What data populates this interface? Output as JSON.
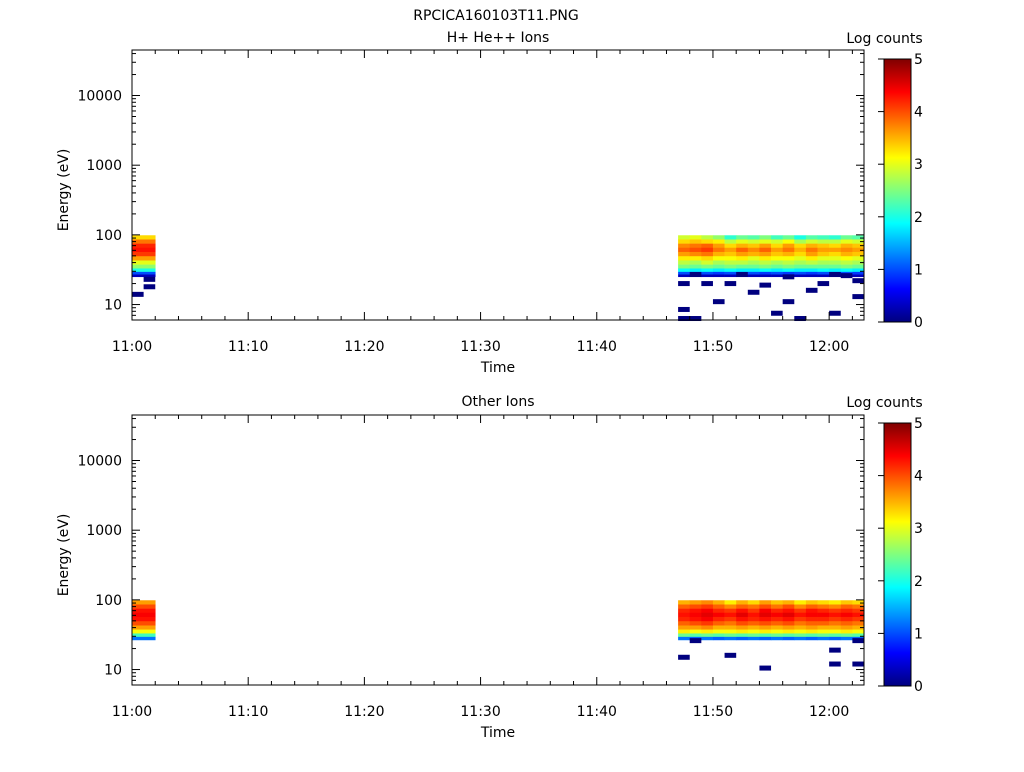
{
  "figure": {
    "title": "RPCICA160103T11.PNG"
  },
  "colorscale": [
    "#00007f",
    "#0000ff",
    "#007fff",
    "#00ffff",
    "#7fff7f",
    "#ffff00",
    "#ff7f00",
    "#ff0000",
    "#7f0000"
  ],
  "chart_data": [
    {
      "type": "heatmap",
      "title": "H+ He++ Ions",
      "xlabel": "Time",
      "ylabel": "Energy (eV)",
      "x_ticks": [
        "11:00",
        "11:10",
        "11:20",
        "11:30",
        "11:40",
        "11:50",
        "12:00"
      ],
      "xlim": [
        "11:00",
        "12:03"
      ],
      "y_scale": "log",
      "ylim": [
        6,
        45000
      ],
      "y_ticks": [
        10,
        100,
        1000,
        10000
      ],
      "y_tick_labels": [
        "10",
        "100",
        "1000",
        "10000"
      ],
      "colorbar": {
        "label": "Log counts",
        "range": [
          0,
          5
        ],
        "ticks": [
          "0",
          "1",
          "2",
          "3",
          "4",
          "5"
        ]
      },
      "blocks": [
        {
          "t_start": "11:00",
          "t_end": "11:02",
          "energies": [
            92,
            80,
            70,
            61,
            53,
            46,
            40,
            35,
            31,
            28,
            26
          ],
          "log_counts": [
            [
              3.3,
              3.8,
              4.2,
              4.3,
              4.1,
              3.6,
              3.0,
              2.6,
              2.0,
              1.0,
              0.3
            ]
          ]
        },
        {
          "t_start": "11:47",
          "t_end": "12:03",
          "energies": [
            92,
            80,
            70,
            61,
            53,
            46,
            40,
            35,
            31,
            28,
            26
          ],
          "log_counts": [
            [
              2.9,
              3.3,
              3.7,
              3.9,
              3.6,
              3.2,
              2.8,
              2.5,
              1.9,
              1.0,
              0.3
            ],
            [
              3.0,
              3.4,
              3.8,
              4.0,
              3.7,
              3.2,
              2.7,
              2.4,
              1.8,
              0.9,
              0.3
            ],
            [
              2.8,
              3.3,
              3.9,
              4.1,
              3.8,
              3.3,
              2.9,
              2.5,
              1.9,
              1.0,
              0.3
            ],
            [
              2.6,
              3.2,
              3.6,
              3.8,
              3.5,
              3.1,
              2.7,
              2.4,
              1.8,
              0.9,
              0.3
            ],
            [
              2.1,
              2.8,
              3.3,
              3.6,
              3.4,
              3.1,
              2.8,
              2.5,
              1.9,
              1.0,
              0.3
            ],
            [
              2.4,
              3.0,
              3.5,
              3.9,
              3.6,
              3.2,
              2.8,
              2.4,
              1.8,
              0.9,
              0.3
            ],
            [
              2.3,
              2.9,
              3.4,
              3.7,
              3.5,
              3.0,
              2.7,
              2.4,
              1.8,
              1.0,
              0.3
            ],
            [
              2.5,
              3.0,
              3.6,
              3.9,
              3.6,
              3.2,
              2.8,
              2.5,
              1.9,
              0.9,
              0.3
            ],
            [
              2.2,
              2.9,
              3.3,
              3.6,
              3.4,
              3.1,
              2.7,
              2.4,
              1.8,
              1.0,
              0.3
            ],
            [
              2.4,
              3.1,
              3.6,
              3.8,
              3.5,
              3.1,
              2.8,
              2.5,
              1.9,
              0.9,
              0.3
            ],
            [
              2.0,
              2.7,
              3.3,
              3.5,
              3.3,
              3.0,
              2.7,
              2.4,
              1.8,
              1.0,
              0.3
            ],
            [
              2.3,
              2.9,
              3.5,
              3.8,
              3.6,
              3.2,
              2.8,
              2.4,
              1.8,
              0.9,
              0.3
            ],
            [
              2.2,
              2.8,
              3.4,
              3.6,
              3.4,
              3.0,
              2.7,
              2.4,
              1.9,
              1.0,
              0.3
            ],
            [
              2.1,
              2.8,
              3.3,
              3.6,
              3.3,
              3.0,
              2.7,
              2.4,
              1.8,
              0.9,
              0.3
            ],
            [
              2.4,
              3.0,
              3.5,
              3.7,
              3.5,
              3.1,
              2.8,
              2.5,
              1.9,
              1.0,
              0.3
            ],
            [
              2.3,
              2.9,
              3.4,
              3.6,
              3.4,
              3.0,
              2.7,
              2.4,
              1.8,
              0.9,
              0.3
            ]
          ]
        }
      ],
      "low_count_bins": [
        {
          "t": "11:00",
          "dt_min": 1.0,
          "e": 14,
          "v": 0
        },
        {
          "t": "11:01",
          "dt_min": 1.0,
          "e": 18,
          "v": 0
        },
        {
          "t": "11:01",
          "dt_min": 1.0,
          "e": 23,
          "v": 0
        },
        {
          "t": "11:47",
          "dt_min": 1.0,
          "e": 8.5,
          "v": 0
        },
        {
          "t": "11:47",
          "dt_min": 2.0,
          "e": 6.3,
          "v": 0
        },
        {
          "t": "11:47",
          "dt_min": 1.0,
          "e": 20,
          "v": 0
        },
        {
          "t": "11:48",
          "dt_min": 1.0,
          "e": 27,
          "v": 0
        },
        {
          "t": "11:49",
          "dt_min": 1.0,
          "e": 20,
          "v": 0
        },
        {
          "t": "11:50",
          "dt_min": 1.0,
          "e": 11,
          "v": 0
        },
        {
          "t": "11:51",
          "dt_min": 1.0,
          "e": 20,
          "v": 0
        },
        {
          "t": "11:52",
          "dt_min": 1.0,
          "e": 27,
          "v": 0
        },
        {
          "t": "11:53",
          "dt_min": 1.0,
          "e": 15,
          "v": 0
        },
        {
          "t": "11:54",
          "dt_min": 1.0,
          "e": 19,
          "v": 0
        },
        {
          "t": "11:55",
          "dt_min": 1.0,
          "e": 7.5,
          "v": 0
        },
        {
          "t": "11:56",
          "dt_min": 1.0,
          "e": 11,
          "v": 0
        },
        {
          "t": "11:56",
          "dt_min": 1.0,
          "e": 25,
          "v": 0
        },
        {
          "t": "11:57",
          "dt_min": 1.0,
          "e": 6.3,
          "v": 0
        },
        {
          "t": "11:58",
          "dt_min": 1.0,
          "e": 16,
          "v": 0
        },
        {
          "t": "11:59",
          "dt_min": 1.0,
          "e": 20,
          "v": 0
        },
        {
          "t": "12:00",
          "dt_min": 1.0,
          "e": 27,
          "v": 0
        },
        {
          "t": "12:00",
          "dt_min": 1.0,
          "e": 7.5,
          "v": 0
        },
        {
          "t": "12:01",
          "dt_min": 1.0,
          "e": 26,
          "v": 0
        },
        {
          "t": "12:02",
          "dt_min": 1.0,
          "e": 13,
          "v": 0
        },
        {
          "t": "12:02",
          "dt_min": 1.0,
          "e": 22,
          "v": 0
        }
      ]
    },
    {
      "type": "heatmap",
      "title": "Other Ions",
      "xlabel": "Time",
      "ylabel": "Energy (eV)",
      "x_ticks": [
        "11:00",
        "11:10",
        "11:20",
        "11:30",
        "11:40",
        "11:50",
        "12:00"
      ],
      "xlim": [
        "11:00",
        "12:03"
      ],
      "y_scale": "log",
      "ylim": [
        6,
        45000
      ],
      "y_ticks": [
        10,
        100,
        1000,
        10000
      ],
      "y_tick_labels": [
        "10",
        "100",
        "1000",
        "10000"
      ],
      "colorbar": {
        "label": "Log counts",
        "range": [
          0,
          5
        ],
        "ticks": [
          "0",
          "1",
          "2",
          "3",
          "4",
          "5"
        ]
      },
      "blocks": [
        {
          "t_start": "11:00",
          "t_end": "11:02",
          "energies": [
            92,
            80,
            70,
            61,
            53,
            46,
            40,
            35,
            31,
            28
          ],
          "log_counts": [
            [
              3.6,
              4.0,
              4.3,
              4.4,
              4.3,
              4.0,
              3.6,
              3.1,
              2.2,
              1.2
            ]
          ]
        },
        {
          "t_start": "11:47",
          "t_end": "12:03",
          "energies": [
            92,
            80,
            70,
            61,
            53,
            46,
            40,
            35,
            31,
            28
          ],
          "log_counts": [
            [
              3.5,
              3.9,
              4.2,
              4.3,
              4.2,
              3.9,
              3.6,
              3.2,
              2.4,
              1.2
            ],
            [
              3.6,
              4.0,
              4.3,
              4.4,
              4.3,
              4.0,
              3.6,
              3.1,
              2.3,
              1.1
            ],
            [
              3.7,
              4.1,
              4.4,
              4.5,
              4.4,
              4.1,
              3.7,
              3.2,
              2.4,
              1.2
            ],
            [
              3.5,
              3.9,
              4.2,
              4.4,
              4.2,
              3.9,
              3.5,
              3.1,
              2.3,
              1.1
            ],
            [
              3.2,
              3.7,
              4.1,
              4.3,
              4.1,
              3.8,
              3.5,
              3.1,
              2.4,
              1.2
            ],
            [
              3.5,
              3.9,
              4.3,
              4.5,
              4.3,
              4.0,
              3.6,
              3.2,
              2.3,
              1.1
            ],
            [
              3.3,
              3.8,
              4.1,
              4.3,
              4.2,
              3.9,
              3.5,
              3.1,
              2.4,
              1.2
            ],
            [
              3.6,
              4.0,
              4.4,
              4.5,
              4.3,
              4.0,
              3.6,
              3.2,
              2.3,
              1.1
            ],
            [
              3.4,
              3.8,
              4.2,
              4.4,
              4.2,
              3.9,
              3.5,
              3.1,
              2.4,
              1.2
            ],
            [
              3.5,
              4.0,
              4.3,
              4.5,
              4.3,
              4.0,
              3.6,
              3.2,
              2.3,
              1.1
            ],
            [
              3.2,
              3.7,
              4.1,
              4.3,
              4.1,
              3.8,
              3.5,
              3.1,
              2.4,
              1.2
            ],
            [
              3.4,
              3.9,
              4.3,
              4.4,
              4.2,
              3.9,
              3.6,
              3.2,
              2.3,
              1.1
            ],
            [
              3.3,
              3.8,
              4.2,
              4.4,
              4.2,
              3.9,
              3.5,
              3.1,
              2.4,
              1.2
            ],
            [
              3.2,
              3.7,
              4.1,
              4.3,
              4.1,
              3.8,
              3.5,
              3.1,
              2.3,
              1.1
            ],
            [
              3.4,
              3.9,
              4.2,
              4.4,
              4.2,
              3.9,
              3.6,
              3.2,
              2.4,
              1.2
            ],
            [
              3.3,
              3.8,
              4.1,
              4.3,
              4.1,
              3.8,
              3.5,
              3.1,
              2.3,
              1.1
            ]
          ]
        }
      ],
      "low_count_bins": [
        {
          "t": "11:47",
          "dt_min": 1.0,
          "e": 15,
          "v": 0
        },
        {
          "t": "11:48",
          "dt_min": 1.0,
          "e": 26,
          "v": 0
        },
        {
          "t": "11:51",
          "dt_min": 1.0,
          "e": 16,
          "v": 0
        },
        {
          "t": "11:54",
          "dt_min": 1.0,
          "e": 10.5,
          "v": 0
        },
        {
          "t": "12:00",
          "dt_min": 1.0,
          "e": 19,
          "v": 0
        },
        {
          "t": "12:00",
          "dt_min": 1.0,
          "e": 12,
          "v": 0
        },
        {
          "t": "12:02",
          "dt_min": 1.0,
          "e": 12,
          "v": 0
        },
        {
          "t": "12:02",
          "dt_min": 1.0,
          "e": 26,
          "v": 0
        }
      ]
    }
  ]
}
